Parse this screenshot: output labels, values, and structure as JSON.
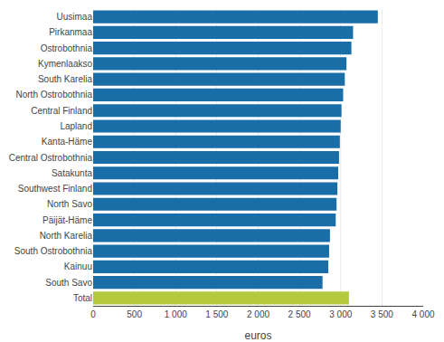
{
  "chart_data": {
    "type": "bar",
    "orientation": "horizontal",
    "categories": [
      "Uusimaa",
      "Pirkanmaa",
      "Ostrobothnia",
      "Kymenlaakso",
      "South Karelia",
      "North Ostrobothnia",
      "Central Finland",
      "Lapland",
      "Kanta-Häme",
      "Central Ostrobothnia",
      "Satakunta",
      "Southwest Finland",
      "North Savo",
      "Päijät-Häme",
      "North Karelia",
      "South Ostrobothnia",
      "Kainuu",
      "South Savo",
      "Total"
    ],
    "values": [
      3450,
      3150,
      3130,
      3070,
      3050,
      3030,
      3010,
      3000,
      2990,
      2980,
      2970,
      2960,
      2950,
      2940,
      2870,
      2860,
      2850,
      2780,
      3100
    ],
    "colors": [
      "#1a6ea8",
      "#1a6ea8",
      "#1a6ea8",
      "#1a6ea8",
      "#1a6ea8",
      "#1a6ea8",
      "#1a6ea8",
      "#1a6ea8",
      "#1a6ea8",
      "#1a6ea8",
      "#1a6ea8",
      "#1a6ea8",
      "#1a6ea8",
      "#1a6ea8",
      "#1a6ea8",
      "#1a6ea8",
      "#1a6ea8",
      "#1a6ea8",
      "#b5c93e"
    ],
    "xlabel": "euros",
    "xlim": [
      0,
      4000
    ],
    "xticks": [
      0,
      500,
      {
        "value": 1000,
        "label": "1 000"
      },
      {
        "value": 1500,
        "label": "1 500"
      },
      {
        "value": 2000,
        "label": "2 000"
      },
      {
        "value": 2500,
        "label": "2 500"
      },
      {
        "value": 3000,
        "label": "3 000"
      },
      {
        "value": 3500,
        "label": "3 500"
      },
      {
        "value": 4000,
        "label": "4 000"
      }
    ],
    "grid": true
  }
}
